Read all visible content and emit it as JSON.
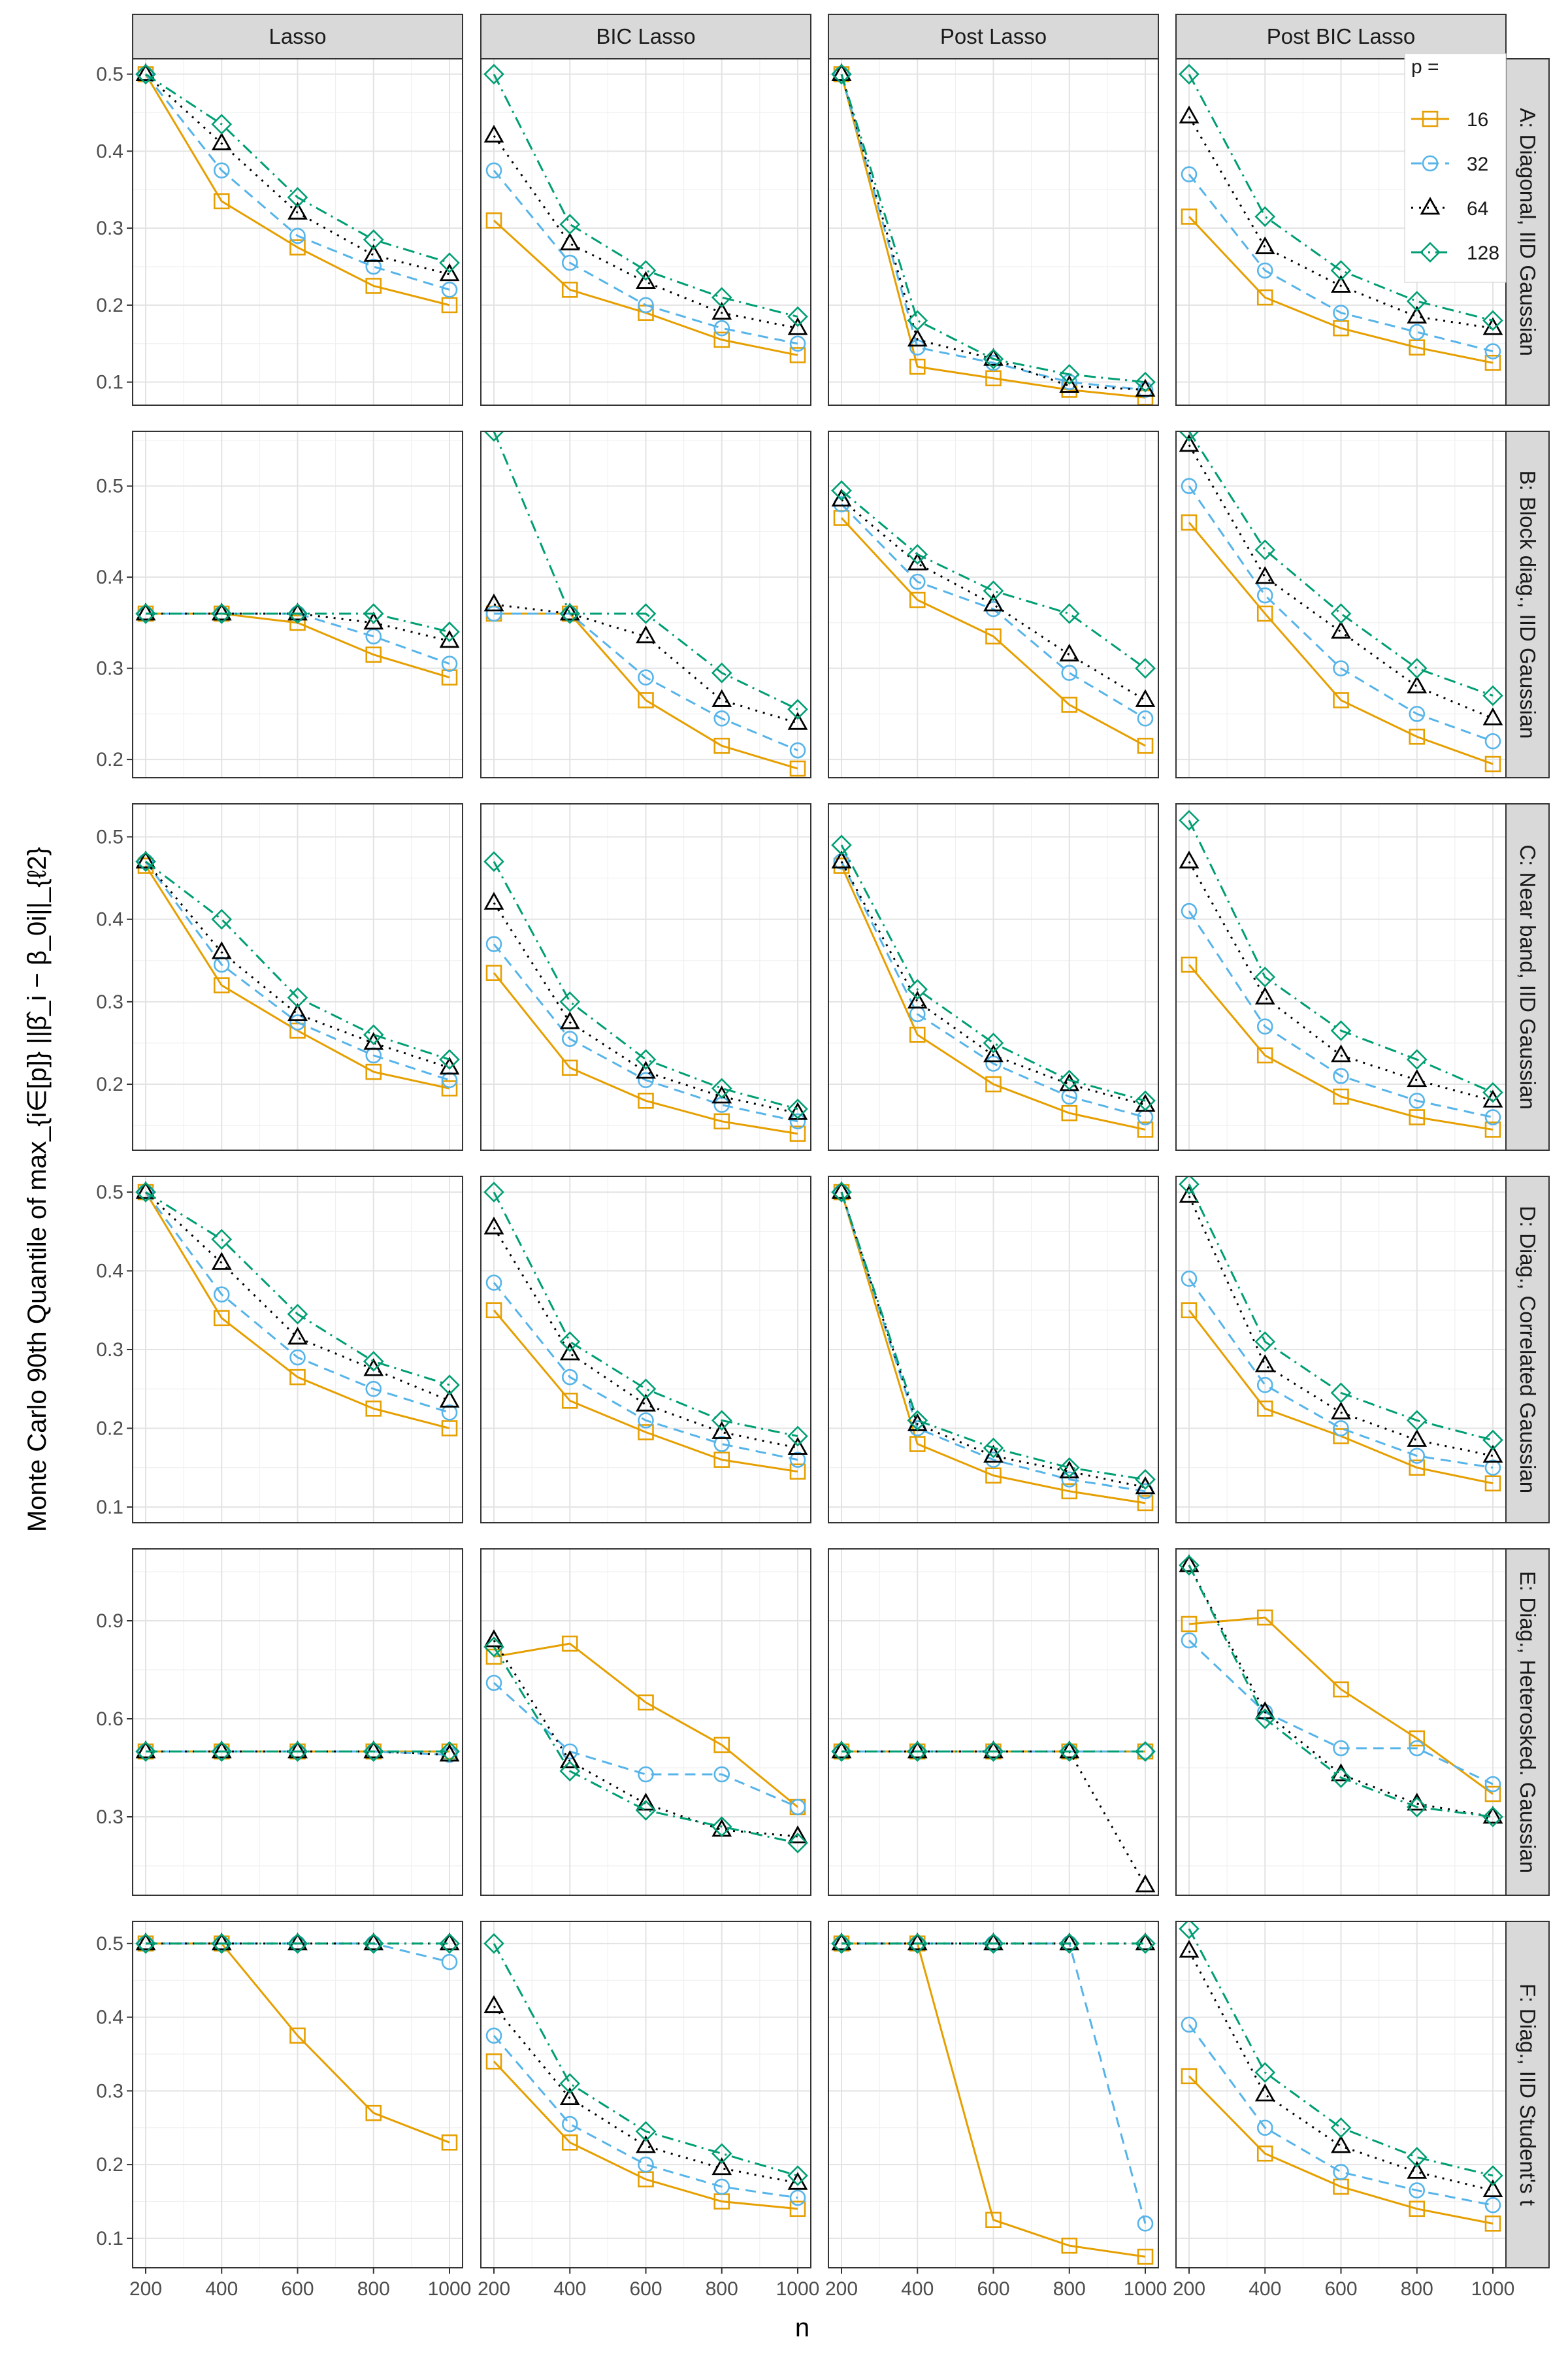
{
  "chart_data": {
    "type": "line",
    "xlabel": "n",
    "ylabel": "Monte Carlo 90th Quantile of max_{i∈[p]} ||β̂_i − β_0i||_{ℓ2}",
    "x": [
      200,
      400,
      600,
      800,
      1000
    ],
    "x_ticks": [
      "200",
      "400",
      "600",
      "800",
      "1000"
    ],
    "columns": [
      "Lasso",
      "BIC Lasso",
      "Post Lasso",
      "Post BIC Lasso"
    ],
    "legend": {
      "title": "p =",
      "placement": "top-right, inside last panel of row A",
      "entries": [
        {
          "label": "16",
          "color": "#E69F00",
          "marker": "square",
          "line": "solid"
        },
        {
          "label": "32",
          "color": "#56B4E9",
          "marker": "circle",
          "line": "dashed"
        },
        {
          "label": "64",
          "color": "#000000",
          "marker": "triangle",
          "line": "dotted"
        },
        {
          "label": "128",
          "color": "#009E73",
          "marker": "diamond",
          "line": "dotdash"
        }
      ]
    },
    "rows": [
      {
        "label": "A: Diagonal, IID Gaussian",
        "ylim": [
          0.07,
          0.52
        ],
        "yticks": [
          0.1,
          0.2,
          0.3,
          0.4,
          0.5
        ],
        "panels": [
          {
            "series": [
              [
                0.5,
                0.335,
                0.275,
                0.225,
                0.2
              ],
              [
                0.5,
                0.375,
                0.29,
                0.25,
                0.22
              ],
              [
                0.5,
                0.41,
                0.32,
                0.265,
                0.24
              ],
              [
                0.5,
                0.435,
                0.34,
                0.285,
                0.255
              ]
            ]
          },
          {
            "series": [
              [
                0.31,
                0.22,
                0.19,
                0.155,
                0.135
              ],
              [
                0.375,
                0.255,
                0.2,
                0.17,
                0.15
              ],
              [
                0.42,
                0.28,
                0.23,
                0.19,
                0.17
              ],
              [
                0.5,
                0.305,
                0.245,
                0.21,
                0.185
              ]
            ]
          },
          {
            "series": [
              [
                0.5,
                0.12,
                0.105,
                0.09,
                0.08
              ],
              [
                0.5,
                0.145,
                0.125,
                0.1,
                0.09
              ],
              [
                0.5,
                0.155,
                0.13,
                0.095,
                0.09
              ],
              [
                0.5,
                0.18,
                0.13,
                0.11,
                0.1
              ]
            ]
          },
          {
            "series": [
              [
                0.315,
                0.21,
                0.17,
                0.145,
                0.125
              ],
              [
                0.37,
                0.245,
                0.19,
                0.165,
                0.14
              ],
              [
                0.445,
                0.275,
                0.225,
                0.185,
                0.17
              ],
              [
                0.5,
                0.315,
                0.245,
                0.205,
                0.18
              ]
            ]
          }
        ]
      },
      {
        "label": "B: Block diag., IID Gaussian",
        "ylim": [
          0.18,
          0.56
        ],
        "yticks": [
          0.2,
          0.3,
          0.4,
          0.5
        ],
        "panels": [
          {
            "series": [
              [
                0.36,
                0.36,
                0.35,
                0.315,
                0.29
              ],
              [
                0.36,
                0.36,
                0.36,
                0.335,
                0.305
              ],
              [
                0.36,
                0.36,
                0.36,
                0.35,
                0.33
              ],
              [
                0.36,
                0.36,
                0.36,
                0.36,
                0.34
              ]
            ]
          },
          {
            "series": [
              [
                0.36,
                0.36,
                0.265,
                0.215,
                0.19
              ],
              [
                0.36,
                0.36,
                0.29,
                0.245,
                0.21
              ],
              [
                0.37,
                0.36,
                0.335,
                0.265,
                0.24
              ],
              [
                0.56,
                0.36,
                0.36,
                0.295,
                0.255
              ]
            ]
          },
          {
            "series": [
              [
                0.465,
                0.375,
                0.335,
                0.26,
                0.215
              ],
              [
                0.48,
                0.395,
                0.365,
                0.295,
                0.245
              ],
              [
                0.485,
                0.415,
                0.37,
                0.315,
                0.265
              ],
              [
                0.495,
                0.425,
                0.385,
                0.36,
                0.3
              ]
            ]
          },
          {
            "series": [
              [
                0.46,
                0.36,
                0.265,
                0.225,
                0.195
              ],
              [
                0.5,
                0.38,
                0.3,
                0.25,
                0.22
              ],
              [
                0.545,
                0.4,
                0.34,
                0.28,
                0.245
              ],
              [
                0.56,
                0.43,
                0.36,
                0.3,
                0.27
              ]
            ]
          }
        ]
      },
      {
        "label": "C: Near band, IID Gaussian",
        "ylim": [
          0.12,
          0.54
        ],
        "yticks": [
          0.2,
          0.3,
          0.4,
          0.5
        ],
        "panels": [
          {
            "series": [
              [
                0.465,
                0.32,
                0.265,
                0.215,
                0.195
              ],
              [
                0.47,
                0.345,
                0.275,
                0.235,
                0.205
              ],
              [
                0.47,
                0.36,
                0.285,
                0.25,
                0.22
              ],
              [
                0.47,
                0.4,
                0.305,
                0.26,
                0.23
              ]
            ]
          },
          {
            "series": [
              [
                0.335,
                0.22,
                0.18,
                0.155,
                0.14
              ],
              [
                0.37,
                0.255,
                0.205,
                0.175,
                0.155
              ],
              [
                0.42,
                0.275,
                0.215,
                0.185,
                0.165
              ],
              [
                0.47,
                0.3,
                0.23,
                0.195,
                0.17
              ]
            ]
          },
          {
            "series": [
              [
                0.465,
                0.26,
                0.2,
                0.165,
                0.145
              ],
              [
                0.47,
                0.285,
                0.225,
                0.185,
                0.16
              ],
              [
                0.47,
                0.3,
                0.235,
                0.2,
                0.175
              ],
              [
                0.49,
                0.315,
                0.25,
                0.205,
                0.18
              ]
            ]
          },
          {
            "series": [
              [
                0.345,
                0.235,
                0.185,
                0.16,
                0.145
              ],
              [
                0.41,
                0.27,
                0.21,
                0.18,
                0.16
              ],
              [
                0.47,
                0.305,
                0.235,
                0.205,
                0.18
              ],
              [
                0.52,
                0.33,
                0.265,
                0.23,
                0.19
              ]
            ]
          }
        ]
      },
      {
        "label": "D: Diag., Correlated Gaussian",
        "ylim": [
          0.08,
          0.52
        ],
        "yticks": [
          0.1,
          0.2,
          0.3,
          0.4,
          0.5
        ],
        "panels": [
          {
            "series": [
              [
                0.5,
                0.34,
                0.265,
                0.225,
                0.2
              ],
              [
                0.5,
                0.37,
                0.29,
                0.25,
                0.22
              ],
              [
                0.5,
                0.41,
                0.315,
                0.275,
                0.235
              ],
              [
                0.5,
                0.44,
                0.345,
                0.285,
                0.255
              ]
            ]
          },
          {
            "series": [
              [
                0.35,
                0.235,
                0.195,
                0.16,
                0.145
              ],
              [
                0.385,
                0.265,
                0.21,
                0.18,
                0.16
              ],
              [
                0.455,
                0.295,
                0.23,
                0.195,
                0.175
              ],
              [
                0.5,
                0.31,
                0.25,
                0.21,
                0.19
              ]
            ]
          },
          {
            "series": [
              [
                0.5,
                0.18,
                0.14,
                0.12,
                0.105
              ],
              [
                0.5,
                0.2,
                0.16,
                0.135,
                0.12
              ],
              [
                0.5,
                0.205,
                0.165,
                0.145,
                0.125
              ],
              [
                0.5,
                0.21,
                0.175,
                0.15,
                0.135
              ]
            ]
          },
          {
            "series": [
              [
                0.35,
                0.225,
                0.19,
                0.15,
                0.13
              ],
              [
                0.39,
                0.255,
                0.2,
                0.165,
                0.15
              ],
              [
                0.495,
                0.28,
                0.22,
                0.185,
                0.165
              ],
              [
                0.51,
                0.31,
                0.245,
                0.21,
                0.185
              ]
            ]
          }
        ]
      },
      {
        "label": "E: Diag., Heterosked. Gaussian",
        "ylim": [
          0.06,
          1.12
        ],
        "yticks": [
          0.3,
          0.6,
          0.9
        ],
        "panels": [
          {
            "series": [
              [
                0.5,
                0.5,
                0.5,
                0.5,
                0.5
              ],
              [
                0.5,
                0.5,
                0.5,
                0.5,
                0.49
              ],
              [
                0.5,
                0.5,
                0.5,
                0.5,
                0.49
              ],
              [
                0.5,
                0.5,
                0.5,
                0.5,
                0.5
              ]
            ]
          },
          {
            "series": [
              [
                0.79,
                0.83,
                0.65,
                0.52,
                0.33
              ],
              [
                0.71,
                0.5,
                0.43,
                0.43,
                0.33
              ],
              [
                0.84,
                0.47,
                0.34,
                0.26,
                0.24
              ],
              [
                0.82,
                0.44,
                0.32,
                0.27,
                0.22
              ]
            ]
          },
          {
            "series": [
              [
                0.5,
                0.5,
                0.5,
                0.5,
                0.5
              ],
              [
                0.5,
                0.5,
                0.5,
                0.5,
                0.5
              ],
              [
                0.5,
                0.5,
                0.5,
                0.5,
                0.09
              ],
              [
                0.5,
                0.5,
                0.5,
                0.5,
                0.5
              ]
            ]
          },
          {
            "series": [
              [
                0.89,
                0.91,
                0.69,
                0.54,
                0.37
              ],
              [
                0.84,
                0.62,
                0.51,
                0.51,
                0.4
              ],
              [
                1.07,
                0.62,
                0.43,
                0.34,
                0.3
              ],
              [
                1.07,
                0.6,
                0.42,
                0.33,
                0.3
              ]
            ]
          }
        ]
      },
      {
        "label": "F: Diag., IID Student's t",
        "ylim": [
          0.06,
          0.53
        ],
        "yticks": [
          0.1,
          0.2,
          0.3,
          0.4,
          0.5
        ],
        "panels": [
          {
            "series": [
              [
                0.5,
                0.5,
                0.375,
                0.27,
                0.23
              ],
              [
                0.5,
                0.5,
                0.5,
                0.5,
                0.475
              ],
              [
                0.5,
                0.5,
                0.5,
                0.5,
                0.5
              ],
              [
                0.5,
                0.5,
                0.5,
                0.5,
                0.5
              ]
            ]
          },
          {
            "series": [
              [
                0.34,
                0.23,
                0.18,
                0.15,
                0.14
              ],
              [
                0.375,
                0.255,
                0.2,
                0.17,
                0.155
              ],
              [
                0.415,
                0.29,
                0.225,
                0.195,
                0.175
              ],
              [
                0.5,
                0.31,
                0.245,
                0.215,
                0.185
              ]
            ]
          },
          {
            "series": [
              [
                0.5,
                0.5,
                0.125,
                0.09,
                0.075
              ],
              [
                0.5,
                0.5,
                0.5,
                0.5,
                0.12
              ],
              [
                0.5,
                0.5,
                0.5,
                0.5,
                0.5
              ],
              [
                0.5,
                0.5,
                0.5,
                0.5,
                0.5
              ]
            ]
          },
          {
            "series": [
              [
                0.32,
                0.215,
                0.17,
                0.14,
                0.12
              ],
              [
                0.39,
                0.25,
                0.19,
                0.165,
                0.145
              ],
              [
                0.49,
                0.295,
                0.225,
                0.19,
                0.165
              ],
              [
                0.52,
                0.325,
                0.25,
                0.21,
                0.185
              ]
            ]
          }
        ]
      }
    ]
  }
}
